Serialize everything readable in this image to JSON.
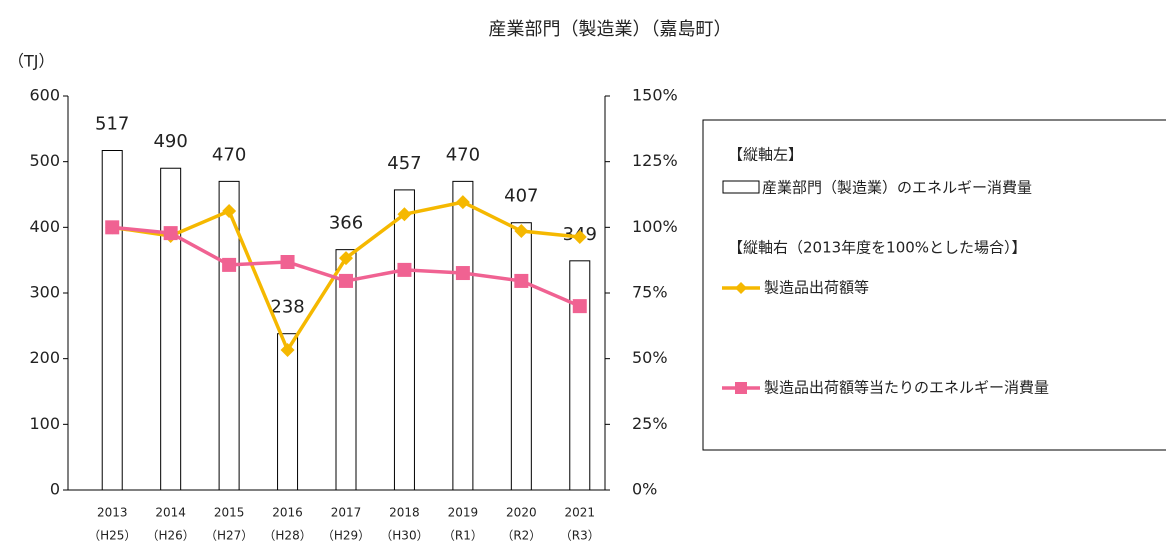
{
  "chart_data": {
    "type": "bar_line",
    "title": "産業部門（製造業）（嘉島町）",
    "ylabel": "（TJ）",
    "categories": [
      [
        "2013",
        "（H25）"
      ],
      [
        "2014",
        "（H26）"
      ],
      [
        "2015",
        "（H27）"
      ],
      [
        "2016",
        "（H28）"
      ],
      [
        "2017",
        "（H29）"
      ],
      [
        "2018",
        "（H30）"
      ],
      [
        "2019",
        "（R1）"
      ],
      [
        "2020",
        "（R2）"
      ],
      [
        "2021",
        "（R3）"
      ]
    ],
    "bars": {
      "name": "産業部門（製造業）のエネルギー消費量",
      "color": "#ffffff",
      "values": [
        517,
        490,
        470,
        238,
        366,
        457,
        470,
        407,
        349
      ]
    },
    "series": [
      {
        "name": "製造品出荷額等",
        "color": "#f5b800",
        "marker": "diamond",
        "axis": "y2",
        "values": [
          100,
          96.7,
          106.2,
          53.3,
          88.3,
          105,
          109.6,
          98.6,
          96.3
        ]
      },
      {
        "name": "製造品出荷額等当たりのエネルギー消費量",
        "color": "#f06292",
        "marker": "square",
        "axis": "y2",
        "values": [
          100,
          97.8,
          85.7,
          86.8,
          79.6,
          83.8,
          82.6,
          79.6,
          70
        ]
      }
    ],
    "legend_headings": [
      "【縦軸左】",
      "【縦軸右（2013年度を100%とした場合）】"
    ],
    "ylim": [
      0,
      600
    ],
    "yticks": [
      0,
      100,
      200,
      300,
      400,
      500,
      600
    ],
    "y2lim": [
      0,
      150
    ],
    "y2ticks": [
      {
        "value": 0,
        "label": "0%"
      },
      {
        "value": 25,
        "label": "25%"
      },
      {
        "value": 50,
        "label": "50%"
      },
      {
        "value": 75,
        "label": "75%"
      },
      {
        "value": 100,
        "label": "100%"
      },
      {
        "value": 125,
        "label": "125%"
      },
      {
        "value": 150,
        "label": "150%"
      }
    ],
    "legend": "right"
  }
}
